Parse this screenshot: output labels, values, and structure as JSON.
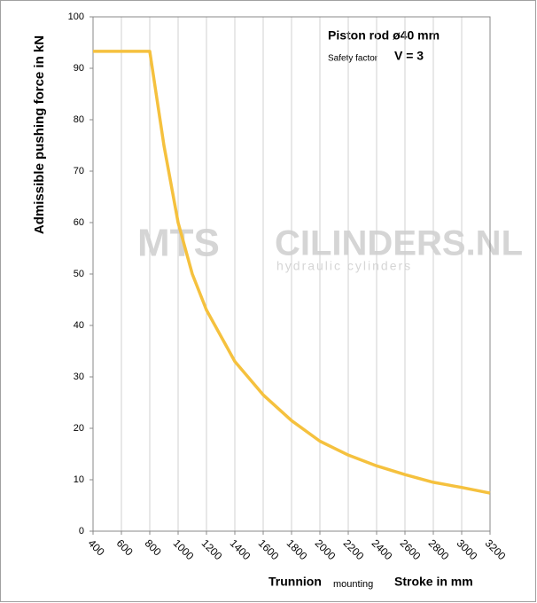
{
  "chart_data": {
    "type": "line",
    "title": "Piston rod ø40 mm",
    "safety_label": "Safety factor",
    "safety_value": "V = 3",
    "ylabel": "Admissible pushing force in kN",
    "xlabel": "Trunnion",
    "xlabel_note": "mounting",
    "xlabel_unit": "Stroke in mm",
    "watermark": [
      "MTS",
      "CILINDERS.NL",
      "hydraulic cylinders"
    ],
    "xlim": [
      400,
      3200
    ],
    "xticks": [
      400,
      600,
      800,
      1000,
      1200,
      1400,
      1600,
      1800,
      2000,
      2200,
      2400,
      2600,
      2800,
      3000,
      3200
    ],
    "ylim": [
      0,
      100
    ],
    "yticks": [
      0,
      10,
      20,
      30,
      40,
      50,
      60,
      70,
      80,
      90,
      100
    ],
    "grid": "x",
    "series": [
      {
        "color": "#f5c13e",
        "x": [
          400,
          800,
          900,
          1000,
          1100,
          1200,
          1400,
          1600,
          1800,
          2000,
          2200,
          2400,
          2600,
          2800,
          3000,
          3200
        ],
        "values": [
          93.3,
          93.3,
          75,
          60,
          50,
          43,
          33,
          26.5,
          21.5,
          17.5,
          14.8,
          12.7,
          11,
          9.5,
          8.5,
          7.4
        ]
      }
    ]
  }
}
